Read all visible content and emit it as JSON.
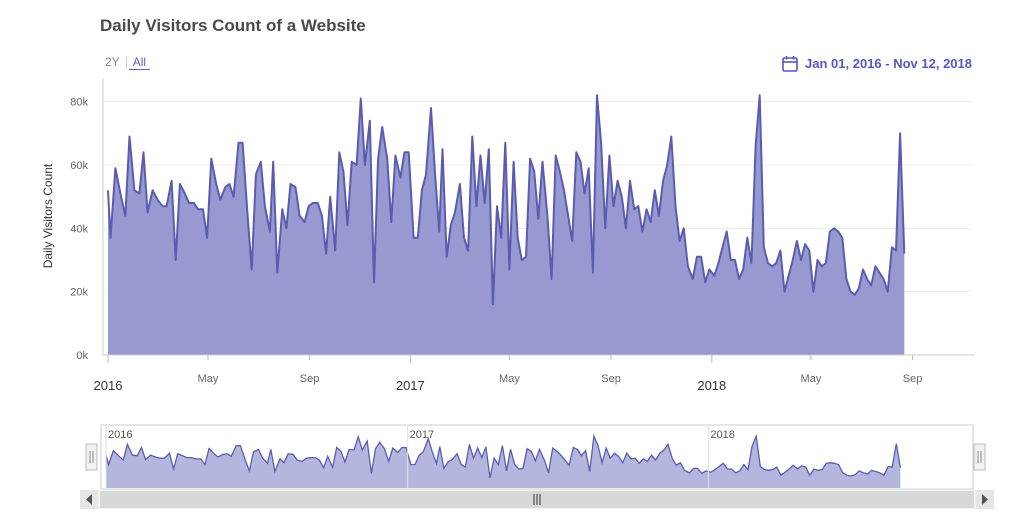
{
  "title": "Daily Visitors Count of a Website",
  "range_buttons": [
    {
      "label": "2Y",
      "active": false
    },
    {
      "label": "All",
      "active": true
    }
  ],
  "date_range_label": "Jan 01, 2016 - Nov 12, 2018",
  "colors": {
    "accent": "#5557c2",
    "area_fill": "#9899d0",
    "line": "#5a5cb0",
    "grid": "#ececec"
  },
  "chart_data": {
    "type": "area",
    "title": "Daily Visitors Count of a Website",
    "ylabel": "Daily Visitors Count",
    "xlabel": "",
    "xlim": [
      "2016-01-01",
      "2018-11-12"
    ],
    "ylim": [
      0,
      90000
    ],
    "y_ticks": [
      0,
      20000,
      40000,
      60000,
      80000
    ],
    "y_tick_labels": [
      "0k",
      "20k",
      "40k",
      "60k",
      "80k"
    ],
    "x_ticks": [
      {
        "date": "2016-01-01",
        "label": "2016",
        "major": true
      },
      {
        "date": "2016-05-01",
        "label": "May",
        "major": false
      },
      {
        "date": "2016-09-01",
        "label": "Sep",
        "major": false
      },
      {
        "date": "2017-01-01",
        "label": "2017",
        "major": true
      },
      {
        "date": "2017-05-01",
        "label": "May",
        "major": false
      },
      {
        "date": "2017-09-01",
        "label": "Sep",
        "major": false
      },
      {
        "date": "2018-01-01",
        "label": "2018",
        "major": true
      },
      {
        "date": "2018-05-01",
        "label": "May",
        "major": false
      },
      {
        "date": "2018-09-01",
        "label": "Sep",
        "major": false
      }
    ],
    "grid": true,
    "series": [
      {
        "name": "",
        "points": [
          [
            "2016-01-01",
            52000
          ],
          [
            "2016-01-04",
            37000
          ],
          [
            "2016-01-10",
            59000
          ],
          [
            "2016-01-16",
            51000
          ],
          [
            "2016-01-22",
            44000
          ],
          [
            "2016-01-27",
            69000
          ],
          [
            "2016-02-02",
            52000
          ],
          [
            "2016-02-08",
            51000
          ],
          [
            "2016-02-13",
            64000
          ],
          [
            "2016-02-18",
            45000
          ],
          [
            "2016-02-24",
            52000
          ],
          [
            "2016-03-01",
            49000
          ],
          [
            "2016-03-07",
            47000
          ],
          [
            "2016-03-12",
            47000
          ],
          [
            "2016-03-18",
            55000
          ],
          [
            "2016-03-23",
            30000
          ],
          [
            "2016-03-28",
            54000
          ],
          [
            "2016-04-03",
            51000
          ],
          [
            "2016-04-08",
            48000
          ],
          [
            "2016-04-14",
            48000
          ],
          [
            "2016-04-19",
            46000
          ],
          [
            "2016-04-25",
            46000
          ],
          [
            "2016-04-30",
            37000
          ],
          [
            "2016-05-05",
            62000
          ],
          [
            "2016-05-11",
            54000
          ],
          [
            "2016-05-16",
            49000
          ],
          [
            "2016-05-22",
            53000
          ],
          [
            "2016-05-27",
            54000
          ],
          [
            "2016-06-01",
            50000
          ],
          [
            "2016-06-07",
            67000
          ],
          [
            "2016-06-12",
            67000
          ],
          [
            "2016-06-18",
            44000
          ],
          [
            "2016-06-23",
            27000
          ],
          [
            "2016-06-28",
            57000
          ],
          [
            "2016-07-04",
            61000
          ],
          [
            "2016-07-09",
            47000
          ],
          [
            "2016-07-15",
            39000
          ],
          [
            "2016-07-19",
            61000
          ],
          [
            "2016-07-24",
            26000
          ],
          [
            "2016-07-30",
            46000
          ],
          [
            "2016-08-04",
            40000
          ],
          [
            "2016-08-09",
            54000
          ],
          [
            "2016-08-15",
            53000
          ],
          [
            "2016-08-20",
            44000
          ],
          [
            "2016-08-26",
            42000
          ],
          [
            "2016-08-31",
            47000
          ],
          [
            "2016-09-05",
            48000
          ],
          [
            "2016-09-11",
            48000
          ],
          [
            "2016-09-16",
            44000
          ],
          [
            "2016-09-21",
            32000
          ],
          [
            "2016-09-26",
            50000
          ],
          [
            "2016-10-02",
            33000
          ],
          [
            "2016-10-07",
            64000
          ],
          [
            "2016-10-12",
            58000
          ],
          [
            "2016-10-17",
            41000
          ],
          [
            "2016-10-22",
            61000
          ],
          [
            "2016-10-28",
            60000
          ],
          [
            "2016-11-02",
            81000
          ],
          [
            "2016-11-07",
            60000
          ],
          [
            "2016-11-13",
            74000
          ],
          [
            "2016-11-18",
            23000
          ],
          [
            "2016-11-23",
            62000
          ],
          [
            "2016-11-28",
            72000
          ],
          [
            "2016-12-04",
            62000
          ],
          [
            "2016-12-09",
            42000
          ],
          [
            "2016-12-14",
            63000
          ],
          [
            "2016-12-20",
            56000
          ],
          [
            "2016-12-25",
            64000
          ],
          [
            "2016-12-30",
            64000
          ],
          [
            "2017-01-05",
            37000
          ],
          [
            "2017-01-10",
            37000
          ],
          [
            "2017-01-15",
            52000
          ],
          [
            "2017-01-20",
            57000
          ],
          [
            "2017-01-26",
            78000
          ],
          [
            "2017-01-31",
            57000
          ],
          [
            "2017-02-05",
            39000
          ],
          [
            "2017-02-09",
            65000
          ],
          [
            "2017-02-14",
            31000
          ],
          [
            "2017-02-19",
            41000
          ],
          [
            "2017-02-24",
            45000
          ],
          [
            "2017-03-02",
            54000
          ],
          [
            "2017-03-07",
            37000
          ],
          [
            "2017-03-12",
            33000
          ],
          [
            "2017-03-17",
            69000
          ],
          [
            "2017-03-22",
            47000
          ],
          [
            "2017-03-27",
            63000
          ],
          [
            "2017-04-01",
            48000
          ],
          [
            "2017-04-06",
            65000
          ],
          [
            "2017-04-11",
            16000
          ],
          [
            "2017-04-16",
            47000
          ],
          [
            "2017-04-21",
            37000
          ],
          [
            "2017-04-26",
            67000
          ],
          [
            "2017-05-01",
            27000
          ],
          [
            "2017-05-06",
            61000
          ],
          [
            "2017-05-11",
            37000
          ],
          [
            "2017-05-16",
            30000
          ],
          [
            "2017-05-21",
            31000
          ],
          [
            "2017-05-26",
            62000
          ],
          [
            "2017-05-31",
            58000
          ],
          [
            "2017-06-05",
            43000
          ],
          [
            "2017-06-10",
            61000
          ],
          [
            "2017-06-16",
            44000
          ],
          [
            "2017-06-21",
            24000
          ],
          [
            "2017-06-26",
            63000
          ],
          [
            "2017-07-01",
            58000
          ],
          [
            "2017-07-06",
            52000
          ],
          [
            "2017-07-11",
            44000
          ],
          [
            "2017-07-16",
            36000
          ],
          [
            "2017-07-21",
            64000
          ],
          [
            "2017-07-26",
            61000
          ],
          [
            "2017-07-31",
            51000
          ],
          [
            "2017-08-05",
            59000
          ],
          [
            "2017-08-10",
            26000
          ],
          [
            "2017-08-15",
            82000
          ],
          [
            "2017-08-20",
            67000
          ],
          [
            "2017-08-25",
            40000
          ],
          [
            "2017-08-30",
            63000
          ],
          [
            "2017-09-04",
            47000
          ],
          [
            "2017-09-09",
            55000
          ],
          [
            "2017-09-14",
            50000
          ],
          [
            "2017-09-19",
            40000
          ],
          [
            "2017-09-24",
            55000
          ],
          [
            "2017-09-29",
            46000
          ],
          [
            "2017-10-04",
            47000
          ],
          [
            "2017-10-09",
            39000
          ],
          [
            "2017-10-14",
            46000
          ],
          [
            "2017-10-19",
            42000
          ],
          [
            "2017-10-24",
            52000
          ],
          [
            "2017-10-29",
            44000
          ],
          [
            "2017-11-03",
            55000
          ],
          [
            "2017-11-08",
            60000
          ],
          [
            "2017-11-13",
            69000
          ],
          [
            "2017-11-18",
            47000
          ],
          [
            "2017-11-23",
            36000
          ],
          [
            "2017-11-28",
            40000
          ],
          [
            "2017-12-03",
            28000
          ],
          [
            "2017-12-09",
            24000
          ],
          [
            "2017-12-14",
            31000
          ],
          [
            "2017-12-19",
            31000
          ],
          [
            "2017-12-24",
            23000
          ],
          [
            "2017-12-29",
            27000
          ],
          [
            "2018-01-04",
            25000
          ],
          [
            "2018-01-09",
            29000
          ],
          [
            "2018-01-14",
            34000
          ],
          [
            "2018-01-19",
            39000
          ],
          [
            "2018-01-24",
            30000
          ],
          [
            "2018-01-29",
            30000
          ],
          [
            "2018-02-03",
            24000
          ],
          [
            "2018-02-08",
            27000
          ],
          [
            "2018-02-13",
            37000
          ],
          [
            "2018-02-18",
            29000
          ],
          [
            "2018-02-23",
            66000
          ],
          [
            "2018-02-28",
            82000
          ],
          [
            "2018-03-05",
            34000
          ],
          [
            "2018-03-10",
            29000
          ],
          [
            "2018-03-15",
            28000
          ],
          [
            "2018-03-20",
            29000
          ],
          [
            "2018-03-25",
            33000
          ],
          [
            "2018-03-30",
            20000
          ],
          [
            "2018-04-04",
            25000
          ],
          [
            "2018-04-09",
            30000
          ],
          [
            "2018-04-14",
            36000
          ],
          [
            "2018-04-19",
            30000
          ],
          [
            "2018-04-24",
            35000
          ],
          [
            "2018-04-29",
            33000
          ],
          [
            "2018-05-04",
            20000
          ],
          [
            "2018-05-09",
            30000
          ],
          [
            "2018-05-14",
            28000
          ],
          [
            "2018-05-19",
            29000
          ],
          [
            "2018-05-24",
            39000
          ],
          [
            "2018-05-29",
            40000
          ],
          [
            "2018-06-03",
            39000
          ],
          [
            "2018-06-08",
            37000
          ],
          [
            "2018-06-13",
            24000
          ],
          [
            "2018-06-18",
            20000
          ],
          [
            "2018-06-23",
            19000
          ],
          [
            "2018-06-28",
            21000
          ],
          [
            "2018-07-03",
            27000
          ],
          [
            "2018-07-08",
            24000
          ],
          [
            "2018-07-13",
            22000
          ],
          [
            "2018-07-18",
            28000
          ],
          [
            "2018-07-23",
            26000
          ],
          [
            "2018-07-28",
            24000
          ],
          [
            "2018-08-02",
            20000
          ],
          [
            "2018-08-07",
            34000
          ],
          [
            "2018-08-12",
            33000
          ],
          [
            "2018-08-17",
            70000
          ],
          [
            "2018-08-22",
            32000
          ]
        ]
      }
    ]
  },
  "navigator": {
    "labels": [
      "2016",
      "2017",
      "2018"
    ],
    "scroll_left_icon": "triangle-left-icon",
    "scroll_right_icon": "triangle-right-icon",
    "handle_icon": "grip-lines-icon"
  }
}
